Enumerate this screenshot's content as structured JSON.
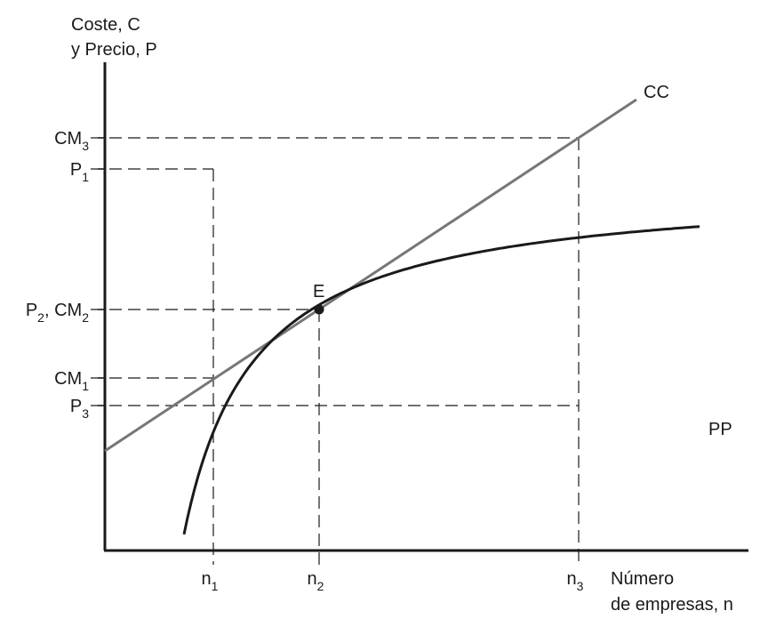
{
  "chart_data": {
    "type": "line",
    "ylabel_line1": "Coste, C",
    "ylabel_line2": "y Precio, P",
    "xlabel_line1": "Número",
    "xlabel_line2": "de empresas, n",
    "equilibrium_label": "E",
    "series": [
      {
        "name": "CC",
        "color": "#777777"
      },
      {
        "name": "PP",
        "color": "#1a1a1a"
      }
    ],
    "x_ticks": [
      {
        "base": "n",
        "sub": "1"
      },
      {
        "base": "n",
        "sub": "2"
      },
      {
        "base": "n",
        "sub": "3"
      }
    ],
    "y_ticks": [
      {
        "parts": [
          {
            "base": "CM",
            "sub": "3"
          }
        ]
      },
      {
        "parts": [
          {
            "base": "P",
            "sub": "1"
          }
        ]
      },
      {
        "parts": [
          {
            "base": "P",
            "sub": "2"
          },
          {
            "sep": ", "
          },
          {
            "base": "CM",
            "sub": "2"
          }
        ]
      },
      {
        "parts": [
          {
            "base": "CM",
            "sub": "1"
          }
        ]
      },
      {
        "parts": [
          {
            "base": "P",
            "sub": "3"
          }
        ]
      }
    ]
  }
}
